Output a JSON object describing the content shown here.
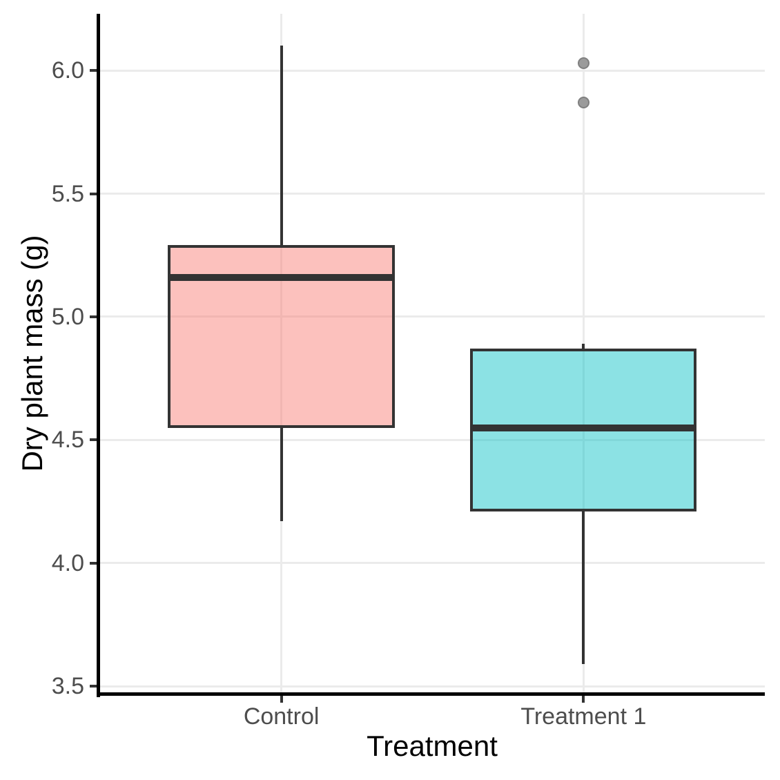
{
  "figure": {
    "background": "#FFFFFF"
  },
  "chart_data": {
    "type": "boxplot",
    "title": "",
    "xlabel": "Treatment",
    "ylabel": "Dry plant mass (g)",
    "categories": [
      "Control",
      "Treatment 1"
    ],
    "x_positions": [
      1,
      2
    ],
    "xlim": [
      0.4,
      2.6
    ],
    "ylim": [
      3.47,
      6.23
    ],
    "y_ticks": [
      6.0,
      5.5,
      5.0,
      4.5,
      4.0,
      3.5
    ],
    "y_tick_labels": [
      "6.0",
      "5.5",
      "5.0",
      "4.5",
      "4.0",
      "3.5"
    ],
    "box_width": 0.75,
    "grid": true,
    "legend": "none",
    "series": [
      {
        "name": "Control",
        "position": 1,
        "whisker_low": 4.17,
        "q1": 4.55,
        "median": 5.16,
        "q3": 5.29,
        "whisker_high": 6.1,
        "outliers": [],
        "fill": "rgba(248,118,109,0.45)"
      },
      {
        "name": "Treatment 1",
        "position": 2,
        "whisker_low": 3.59,
        "q1": 4.21,
        "median": 4.55,
        "q3": 4.87,
        "whisker_high": 4.89,
        "outliers": [
          5.87,
          6.03
        ],
        "fill": "rgba(0,191,196,0.45)"
      }
    ],
    "colors": {
      "box_stroke": "#333333",
      "gridline": "#EBEBEB",
      "axis_line": "#000000",
      "tick_mark": "#333333",
      "tick_label": "#4D4D4D",
      "axis_title": "#000000",
      "outlier_fill": "#9B9B9B",
      "outlier_stroke": "#808080"
    }
  }
}
